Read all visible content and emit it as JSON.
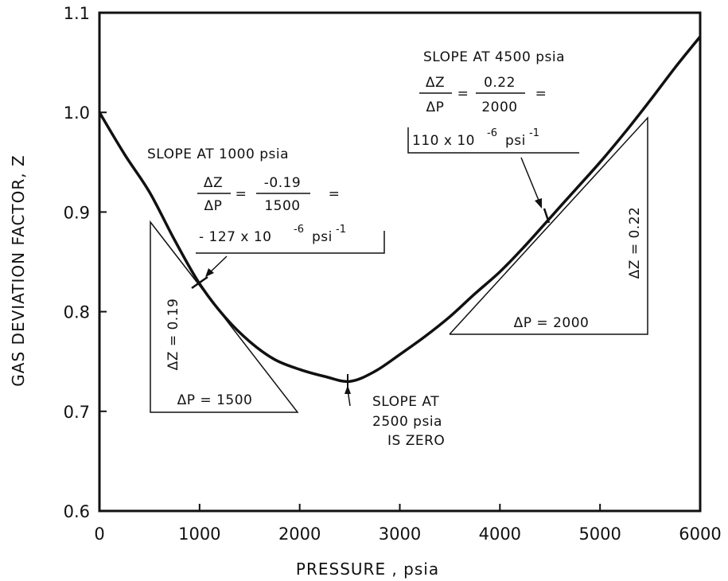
{
  "chart_data": {
    "type": "line",
    "title": "",
    "xlabel": "PRESSURE , psia",
    "ylabel": "GAS DEVIATION FACTOR, Z",
    "xlim": [
      0,
      6000
    ],
    "ylim": [
      0.6,
      1.1
    ],
    "xticks": [
      0,
      1000,
      2000,
      3000,
      4000,
      5000,
      6000
    ],
    "xtick_labels": [
      "0",
      "1000",
      "2000",
      "3000",
      "4000",
      "5000",
      "6000"
    ],
    "yticks": [
      0.6,
      0.7,
      0.8,
      0.9,
      1.0,
      1.1
    ],
    "ytick_labels": [
      "0.6",
      "0.7",
      "0.8",
      "0.9",
      "1.0",
      "1.1"
    ],
    "grid": false,
    "series": [
      {
        "x": [
          0,
          250,
          500,
          750,
          1000,
          1250,
          1500,
          1750,
          2000,
          2250,
          2500,
          2750,
          3000,
          3250,
          3500,
          3750,
          4000,
          4250,
          4500,
          4750,
          5000,
          5250,
          5500,
          5750,
          6000
        ],
        "y": [
          1.0,
          0.958,
          0.92,
          0.872,
          0.828,
          0.795,
          0.77,
          0.752,
          0.742,
          0.735,
          0.73,
          0.74,
          0.757,
          0.775,
          0.795,
          0.818,
          0.84,
          0.866,
          0.894,
          0.922,
          0.95,
          0.98,
          1.012,
          1.045,
          1.076
        ]
      }
    ],
    "annotations": {
      "a1000": {
        "title": "SLOPE AT 1000 psia",
        "num1": "ΔZ",
        "den1": "ΔP",
        "num2": "-0.19",
        "den2": "1500",
        "eq1": "=",
        "eq2": "=",
        "result": "- 127 x 10",
        "exp": "-6",
        "unit": "psi",
        "unit_exp": "-1",
        "dz_label": "ΔZ = 0.19",
        "dp_label": "ΔP = 1500"
      },
      "a2500": {
        "line1": "SLOPE AT",
        "line2": "2500 psia",
        "line3": "IS ZERO"
      },
      "a4500": {
        "title": "SLOPE AT 4500 psia",
        "num1": "ΔZ",
        "den1": "ΔP",
        "num2": "0.22",
        "den2": "2000",
        "eq1": "=",
        "eq2": "=",
        "result": "110 x 10",
        "exp": "-6",
        "unit": "psi",
        "unit_exp": "-1",
        "dz_label": "ΔZ = 0.22",
        "dp_label": "ΔP = 2000"
      }
    }
  }
}
